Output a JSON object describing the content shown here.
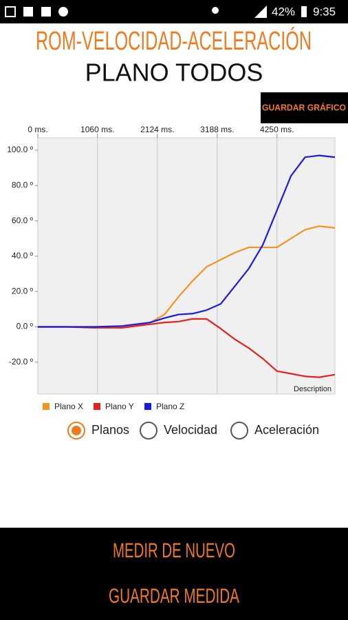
{
  "status_bar": {
    "battery": "42%",
    "time": "9:35"
  },
  "header": {
    "title": "ROM-VELOCIDAD-ACELERACIÓN",
    "subtitle": "PLANO TODOS"
  },
  "save_chart_button": "GUARDAR GRÁFICO",
  "chart_data": {
    "type": "line",
    "description": "Description",
    "x": [
      0,
      500,
      1000,
      1500,
      2000,
      2250,
      2500,
      2750,
      3000,
      3250,
      3500,
      3750,
      4000,
      4250,
      4500,
      4750,
      5000,
      5280
    ],
    "xlim": [
      0,
      5280
    ],
    "xticks": [
      {
        "value": 0,
        "label": "0 ms."
      },
      {
        "value": 1060,
        "label": "1060 ms."
      },
      {
        "value": 2124,
        "label": "2124 ms."
      },
      {
        "value": 3188,
        "label": "3188 ms."
      },
      {
        "value": 4250,
        "label": "4250 ms."
      }
    ],
    "ylim": [
      -38,
      107
    ],
    "yticks": [
      {
        "value": -20,
        "label": "-20.0 º"
      },
      {
        "value": 0,
        "label": "0.0 º"
      },
      {
        "value": 20,
        "label": "20.0 º"
      },
      {
        "value": 40,
        "label": "40.0 º"
      },
      {
        "value": 60,
        "label": "60.0 º"
      },
      {
        "value": 80,
        "label": "80.0 º"
      },
      {
        "value": 100,
        "label": "100.0 º"
      }
    ],
    "x_grid": true,
    "series": [
      {
        "name": "Plano X",
        "color": "#f39420",
        "values": [
          0,
          0,
          0,
          -0.5,
          2.5,
          7,
          17,
          26,
          34,
          38,
          42,
          45,
          45,
          45,
          50,
          55,
          57,
          56
        ]
      },
      {
        "name": "Plano Y",
        "color": "#e8201c",
        "values": [
          0,
          0,
          -0.5,
          -0.5,
          1.5,
          2.5,
          3,
          4.5,
          4.5,
          -1,
          -7,
          -12,
          -18,
          -25,
          -26.5,
          -28,
          -28.5,
          -27
        ]
      },
      {
        "name": "Plano Z",
        "color": "#1a1ae6",
        "values": [
          0,
          0,
          0,
          0.5,
          2.5,
          5,
          7,
          7.5,
          9.5,
          13,
          23,
          33,
          46.5,
          66,
          85.5,
          96,
          97,
          96
        ]
      }
    ]
  },
  "radio_options": [
    "Planos",
    "Velocidad",
    "Aceleración"
  ],
  "buttons": [
    "MEDIR DE NUEVO",
    "GUARDAR MEDIDA"
  ]
}
